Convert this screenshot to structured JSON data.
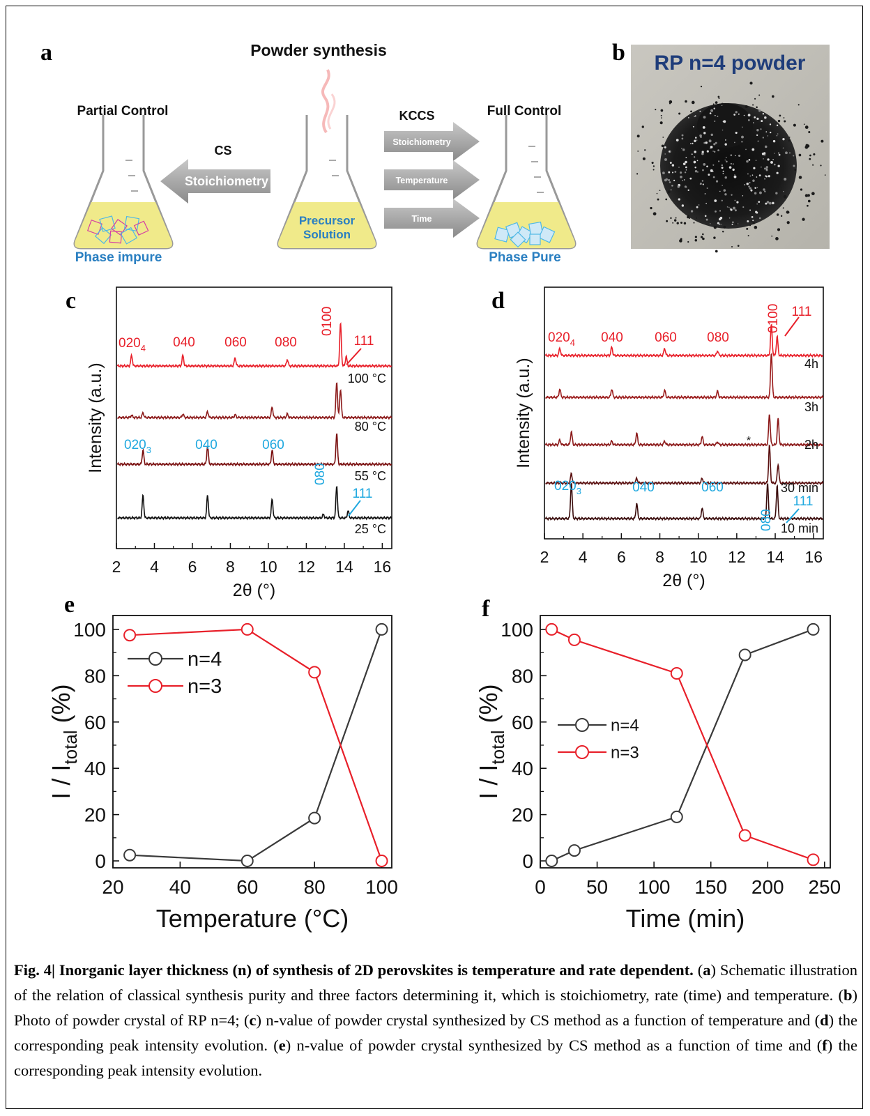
{
  "panel_a": {
    "letter": "a",
    "title": "Powder synthesis",
    "left_label": "Partial Control",
    "right_label": "Full Control",
    "cs_label": "CS",
    "cs_arrow": "Stoichiometry",
    "kccs_label": "KCCS",
    "kccs_arrows": [
      "Stoichiometry",
      "Temperature",
      "Time"
    ],
    "precursor_line1": "Precursor",
    "precursor_line2": "Solution",
    "left_result": "Phase impure",
    "right_result": "Phase Pure"
  },
  "panel_b": {
    "letter": "b",
    "photo_label": "RP n=4 powder"
  },
  "colors": {
    "red": "#e8202a",
    "dark_red": "#8c1a1a",
    "black": "#111111",
    "cyan": "#1fa8df",
    "blue_text": "#2a7fc1",
    "photo_label": "#1f3d7a"
  },
  "chart_data": [
    {
      "panel": "c",
      "type": "line",
      "xlabel": "2θ (°)",
      "ylabel": "Intensity (a.u.)",
      "xlim": [
        2,
        16.5
      ],
      "xticks": [
        "2",
        "4",
        "6",
        "8",
        "10",
        "12",
        "14",
        "16"
      ],
      "series": [
        {
          "name": "100 °C",
          "color": "#e8202a",
          "peaks": [
            [
              2.8,
              0.45
            ],
            [
              5.5,
              0.45
            ],
            [
              8.25,
              0.35
            ],
            [
              11.0,
              0.28
            ],
            [
              13.8,
              1.8
            ],
            [
              14.1,
              0.4
            ]
          ]
        },
        {
          "name": "80 °C",
          "color": "#8c1a1a",
          "peaks": [
            [
              2.8,
              0.1
            ],
            [
              3.4,
              0.2
            ],
            [
              5.5,
              0.15
            ],
            [
              6.8,
              0.25
            ],
            [
              8.25,
              0.12
            ],
            [
              10.2,
              0.45
            ],
            [
              11.0,
              0.15
            ],
            [
              13.6,
              1.5
            ],
            [
              13.8,
              1.2
            ]
          ]
        },
        {
          "name": "55 °C",
          "color": "#7a1010",
          "peaks": [
            [
              3.4,
              0.6
            ],
            [
              6.8,
              0.75
            ],
            [
              10.2,
              0.6
            ],
            [
              13.6,
              1.3
            ]
          ]
        },
        {
          "name": "25 °C",
          "color": "#111111",
          "peaks": [
            [
              3.4,
              0.95
            ],
            [
              6.8,
              0.95
            ],
            [
              10.2,
              0.8
            ],
            [
              12.9,
              0.15
            ],
            [
              13.6,
              1.35
            ],
            [
              14.2,
              0.3
            ]
          ]
        }
      ],
      "red_labels": [
        "020",
        "040",
        "060",
        "080",
        "0100",
        "111"
      ],
      "red_label_sub": "4",
      "cyan_labels": [
        "020",
        "040",
        "060",
        "080",
        "111"
      ],
      "cyan_label_sub": "3"
    },
    {
      "panel": "d",
      "type": "line",
      "xlabel": "2θ (°)",
      "ylabel": "Intensity (a.u.)",
      "xlim": [
        2,
        16.5
      ],
      "xticks": [
        "2",
        "4",
        "6",
        "8",
        "10",
        "12",
        "14",
        "16"
      ],
      "series": [
        {
          "name": "4h",
          "color": "#e8202a",
          "peaks": [
            [
              2.8,
              0.3
            ],
            [
              5.5,
              0.35
            ],
            [
              8.25,
              0.3
            ],
            [
              11.0,
              0.2
            ],
            [
              13.8,
              1.3
            ],
            [
              14.1,
              0.8
            ]
          ]
        },
        {
          "name": "3h",
          "color": "#9b1c1c",
          "peaks": [
            [
              2.8,
              0.35
            ],
            [
              5.5,
              0.35
            ],
            [
              8.25,
              0.3
            ],
            [
              11.0,
              0.25
            ],
            [
              13.8,
              1.9
            ]
          ]
        },
        {
          "name": "2h",
          "color": "#8c1a1a",
          "peaks": [
            [
              2.8,
              0.2
            ],
            [
              3.4,
              0.55
            ],
            [
              5.5,
              0.15
            ],
            [
              6.8,
              0.5
            ],
            [
              8.25,
              0.15
            ],
            [
              10.2,
              0.35
            ],
            [
              11.0,
              0.12
            ],
            [
              13.7,
              1.3
            ],
            [
              14.15,
              1.1
            ]
          ]
        },
        {
          "name": "30 min",
          "color": "#5a1010",
          "peaks": [
            [
              3.4,
              0.4
            ],
            [
              6.8,
              0.2
            ],
            [
              10.2,
              0.2
            ],
            [
              13.7,
              1.6
            ],
            [
              14.15,
              0.8
            ]
          ]
        },
        {
          "name": "10 min",
          "color": "#3a0c0c",
          "peaks": [
            [
              3.4,
              1.5
            ],
            [
              6.8,
              0.65
            ],
            [
              10.2,
              0.45
            ],
            [
              13.6,
              1.5
            ],
            [
              14.1,
              1.4
            ]
          ]
        }
      ],
      "red_labels": [
        "020",
        "040",
        "060",
        "080",
        "0100",
        "111"
      ],
      "red_label_sub": "4",
      "cyan_labels": [
        "020",
        "040",
        "060",
        "080",
        "111"
      ],
      "cyan_label_sub": "3",
      "asterisk": "*"
    },
    {
      "panel": "e",
      "type": "line",
      "xlabel": "Temperature (°C)",
      "ylabel": "I / I",
      "ylabel_sub": "total",
      "ylabel_tail": " (%)",
      "xlim": [
        20,
        103
      ],
      "ylim": [
        -3,
        106
      ],
      "xticks": [
        20,
        40,
        60,
        80,
        100
      ],
      "yticks": [
        0,
        20,
        40,
        60,
        80,
        100
      ],
      "legend": "top-left",
      "series": [
        {
          "name": "n=4",
          "color": "#3a3a3a",
          "x": [
            25,
            60,
            80,
            100
          ],
          "y": [
            2.5,
            0,
            18.5,
            100
          ]
        },
        {
          "name": "n=3",
          "color": "#e8202a",
          "x": [
            25,
            60,
            80,
            100
          ],
          "y": [
            97.5,
            100,
            81.5,
            0
          ]
        }
      ]
    },
    {
      "panel": "f",
      "type": "line",
      "xlabel": "Time (min)",
      "ylabel": "I / I",
      "ylabel_sub": "total",
      "ylabel_tail": " (%)",
      "xlim": [
        0,
        255
      ],
      "ylim": [
        -3,
        106
      ],
      "xticks": [
        0,
        50,
        100,
        150,
        200,
        250
      ],
      "yticks": [
        0,
        20,
        40,
        60,
        80,
        100
      ],
      "legend": "middle-left",
      "series": [
        {
          "name": "n=4",
          "color": "#3a3a3a",
          "x": [
            10,
            30,
            120,
            180,
            240
          ],
          "y": [
            0,
            4.5,
            19,
            89,
            100
          ]
        },
        {
          "name": "n=3",
          "color": "#e8202a",
          "x": [
            10,
            30,
            120,
            180,
            240
          ],
          "y": [
            100,
            95.5,
            81,
            11,
            0.5
          ]
        }
      ]
    }
  ],
  "caption": {
    "bold": "Fig. 4| Inorganic layer thickness (n) of synthesis of 2D perovskites is temperature and rate dependent.",
    "p1": " (",
    "a": "a",
    "t_a": ") Schematic illustration of the relation of classical synthesis purity and three factors determining it, which is stoichiometry, rate (time) and temperature. (",
    "b": "b",
    "t_b": ") Photo of powder crystal of RP n=4; (",
    "c": "c",
    "t_c": ") n-value of powder crystal synthesized by CS method as a function of temperature and (",
    "d": "d",
    "t_d": ") the corresponding peak intensity evolution. (",
    "e": "e",
    "t_e": ") n-value of powder crystal synthesized by CS method as a function of time and (",
    "f": "f",
    "t_f": ") the corresponding peak intensity evolution."
  }
}
